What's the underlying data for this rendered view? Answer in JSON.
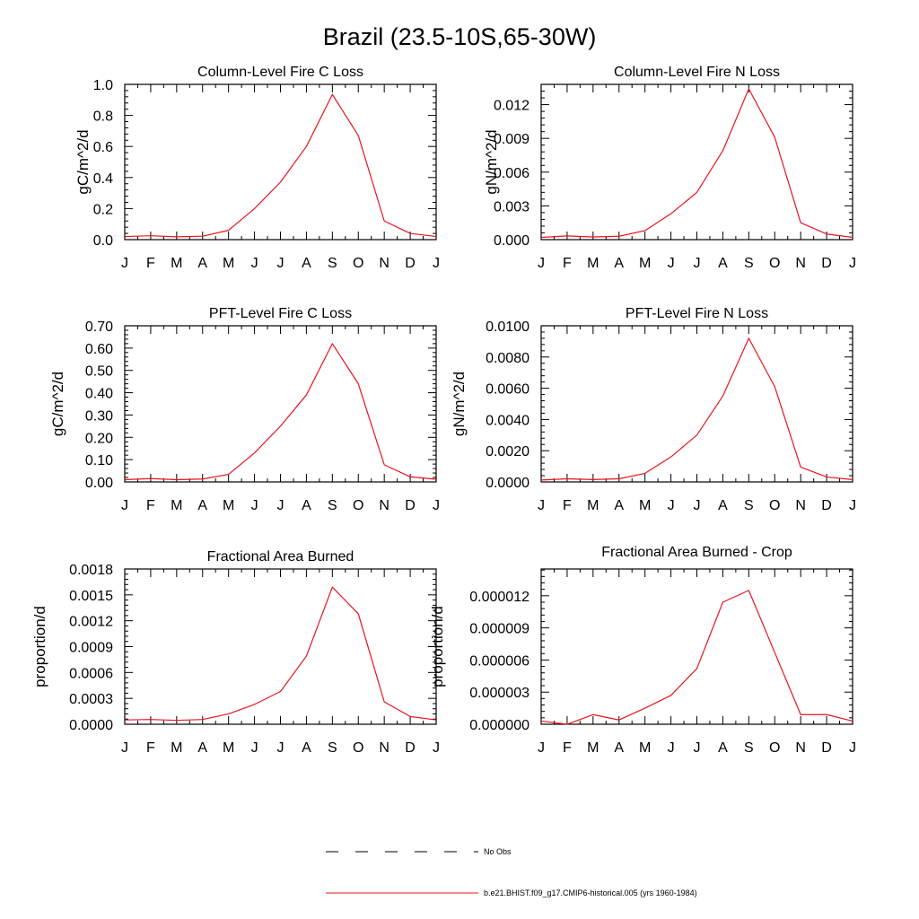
{
  "figure_title": "Brazil (23.5-10S,65-30W)",
  "months": [
    "J",
    "F",
    "M",
    "A",
    "M",
    "J",
    "J",
    "A",
    "S",
    "O",
    "N",
    "D",
    "J"
  ],
  "legend": {
    "obs_label": "No Obs",
    "model_label": "b.e21.BHIST.f09_g17.CMIP6-historical.005 (yrs 1960-1984)",
    "obs_color": "#000000",
    "model_color": "#e8141e"
  },
  "chart_data": [
    {
      "type": "line",
      "title": "Column-Level Fire C Loss",
      "ylabel": "gC/m^2/d",
      "ylim": [
        0,
        1.0
      ],
      "yticks": [
        "0.0",
        "0.2",
        "0.4",
        "0.6",
        "0.8",
        "1.0"
      ],
      "x": [
        "J",
        "F",
        "M",
        "A",
        "M",
        "J",
        "J",
        "A",
        "S",
        "O",
        "N",
        "D",
        "J"
      ],
      "values": [
        0.02,
        0.025,
        0.018,
        0.022,
        0.06,
        0.2,
        0.37,
        0.6,
        0.935,
        0.67,
        0.12,
        0.04,
        0.02
      ]
    },
    {
      "type": "line",
      "title": "Column-Level Fire N Loss",
      "ylabel": "gN/m^2/d",
      "ylim": [
        0,
        0.0138
      ],
      "yticks": [
        "0.000",
        "0.003",
        "0.006",
        "0.009",
        "0.012"
      ],
      "x": [
        "J",
        "F",
        "M",
        "A",
        "M",
        "J",
        "J",
        "A",
        "S",
        "O",
        "N",
        "D",
        "J"
      ],
      "values": [
        0.0002,
        0.00033,
        0.00024,
        0.0003,
        0.0008,
        0.0023,
        0.0042,
        0.0079,
        0.0134,
        0.0091,
        0.0015,
        0.0005,
        0.0002
      ]
    },
    {
      "type": "line",
      "title": "PFT-Level Fire C Loss",
      "ylabel": "gC/m^2/d",
      "ylim": [
        0,
        0.7
      ],
      "yticks": [
        "0.00",
        "0.10",
        "0.20",
        "0.30",
        "0.40",
        "0.50",
        "0.60",
        "0.70"
      ],
      "x": [
        "J",
        "F",
        "M",
        "A",
        "M",
        "J",
        "J",
        "A",
        "S",
        "O",
        "N",
        "D",
        "J"
      ],
      "values": [
        0.01,
        0.015,
        0.01,
        0.013,
        0.034,
        0.13,
        0.25,
        0.39,
        0.62,
        0.44,
        0.077,
        0.023,
        0.012
      ]
    },
    {
      "type": "line",
      "title": "PFT-Level Fire N Loss",
      "ylabel": "gN/m^2/d",
      "ylim": [
        0,
        0.01
      ],
      "yticks": [
        "0.0000",
        "0.0020",
        "0.0040",
        "0.0060",
        "0.0080",
        "0.0100"
      ],
      "x": [
        "J",
        "F",
        "M",
        "A",
        "M",
        "J",
        "J",
        "A",
        "S",
        "O",
        "N",
        "D",
        "J"
      ],
      "values": [
        0.00012,
        0.0002,
        0.00015,
        0.0002,
        0.00055,
        0.0016,
        0.003,
        0.0055,
        0.0092,
        0.0061,
        0.00095,
        0.00032,
        0.00015
      ]
    },
    {
      "type": "line",
      "title": "Fractional Area Burned",
      "ylabel": "proportion/d",
      "ylim": [
        0,
        0.0018
      ],
      "yticks": [
        "0.0000",
        "0.0003",
        "0.0006",
        "0.0009",
        "0.0012",
        "0.0015",
        "0.0018"
      ],
      "x": [
        "J",
        "F",
        "M",
        "A",
        "M",
        "J",
        "J",
        "A",
        "S",
        "O",
        "N",
        "D",
        "J"
      ],
      "values": [
        5e-05,
        5.5e-05,
        4.5e-05,
        5.5e-05,
        0.00012,
        0.00023,
        0.00038,
        0.00079,
        0.00159,
        0.00128,
        0.00026,
        9e-05,
        5e-05
      ]
    },
    {
      "type": "line",
      "title": "Fractional Area Burned - Crop",
      "ylabel": "proportion/d",
      "ylim": [
        0,
        1.45e-05
      ],
      "yticks": [
        "0.000000",
        "0.000003",
        "0.000006",
        "0.000009",
        "0.000012"
      ],
      "x": [
        "J",
        "F",
        "M",
        "A",
        "M",
        "J",
        "J",
        "A",
        "S",
        "O",
        "N",
        "D",
        "J"
      ],
      "values": [
        3e-07,
        0.0,
        9e-07,
        4e-07,
        1.5e-06,
        2.7e-06,
        5.2e-06,
        1.14e-05,
        1.25e-05,
        6.7e-06,
        9e-07,
        9e-07,
        3e-07
      ]
    }
  ]
}
